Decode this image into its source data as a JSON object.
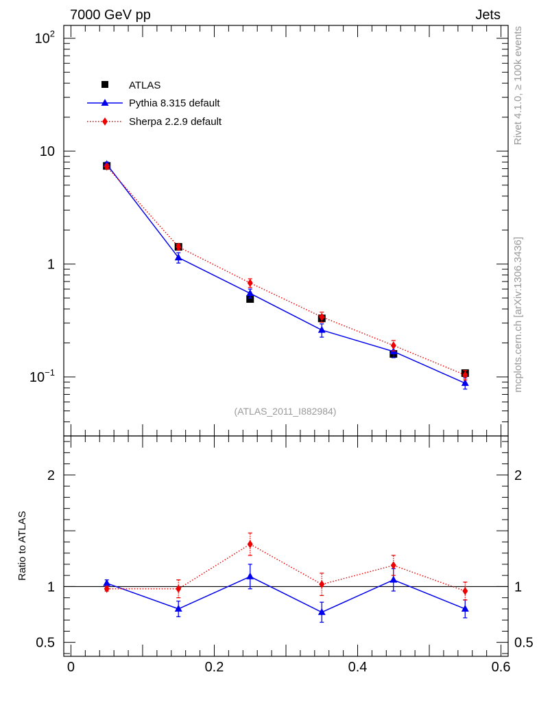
{
  "header": {
    "left": "7000 GeV pp",
    "right": "Jets"
  },
  "side_labels": {
    "rivet": "Rivet 4.1.0, ≥ 100k events",
    "mcplots": "mcplots.cern.ch [arXiv:1306.3436]"
  },
  "analysis_label": "(ATLAS_2011_I882984)",
  "colors": {
    "data": "#000000",
    "pythia": "#0000ee",
    "sherpa": "#ee0000",
    "label_gray": "#999999"
  },
  "chart_data": [
    {
      "type": "line",
      "panel": "main",
      "yscale": "log",
      "xlim": [
        -0.01,
        0.61
      ],
      "ylim": [
        0.03,
        130
      ],
      "y_ticks": [
        {
          "value": 100,
          "label": "10",
          "sup": "2"
        },
        {
          "value": 10,
          "label": "10",
          "sup": ""
        },
        {
          "value": 1,
          "label": "1",
          "sup": ""
        },
        {
          "value": 0.1,
          "label": "10",
          "sup": "−1"
        }
      ],
      "legend": {
        "placement": "top-left",
        "entries": [
          "ATLAS",
          "Pythia 8.315 default",
          "Sherpa 2.2.9 default"
        ]
      },
      "x": [
        0.05,
        0.15,
        0.25,
        0.35,
        0.45,
        0.55
      ],
      "series": [
        {
          "name": "ATLAS",
          "style": "marker-square",
          "values": [
            7.4,
            1.42,
            0.49,
            0.33,
            0.16,
            0.108
          ],
          "err": [
            0.3,
            0.06,
            0.03,
            0.02,
            0.01,
            0.007
          ]
        },
        {
          "name": "Pythia 8.315 default",
          "style": "solid-triangle",
          "values": [
            7.65,
            1.14,
            0.55,
            0.26,
            0.168,
            0.088
          ],
          "err": [
            0.35,
            0.12,
            0.05,
            0.035,
            0.02,
            0.01
          ]
        },
        {
          "name": "Sherpa 2.2.9 default",
          "style": "dotted-diamond",
          "values": [
            7.3,
            1.42,
            0.68,
            0.34,
            0.19,
            0.104
          ],
          "err": [
            0.3,
            0.08,
            0.06,
            0.035,
            0.02,
            0.01
          ]
        }
      ]
    },
    {
      "type": "line",
      "panel": "ratio",
      "ylabel": "Ratio to ATLAS",
      "ylim": [
        0.375,
        2.35
      ],
      "y_ticks": [
        {
          "value": 0.5,
          "label": "0.5"
        },
        {
          "value": 1,
          "label": "1"
        },
        {
          "value": 2,
          "label": "2"
        }
      ],
      "x_ticks": [
        {
          "value": 0,
          "label": "0"
        },
        {
          "value": 0.2,
          "label": "0.2"
        },
        {
          "value": 0.4,
          "label": "0.4"
        },
        {
          "value": 0.6,
          "label": "0.6"
        }
      ],
      "reference_line": 1,
      "x": [
        0.05,
        0.15,
        0.25,
        0.35,
        0.45,
        0.55
      ],
      "series": [
        {
          "name": "Pythia 8.315 default",
          "style": "solid-triangle",
          "values": [
            1.03,
            0.8,
            1.09,
            0.77,
            1.06,
            0.8
          ],
          "err": [
            0.03,
            0.07,
            0.11,
            0.09,
            0.1,
            0.08
          ]
        },
        {
          "name": "Sherpa 2.2.9 default",
          "style": "dotted-diamond",
          "values": [
            0.98,
            0.98,
            1.38,
            1.02,
            1.19,
            0.96
          ],
          "err": [
            0.02,
            0.08,
            0.1,
            0.1,
            0.09,
            0.08
          ]
        }
      ]
    }
  ]
}
